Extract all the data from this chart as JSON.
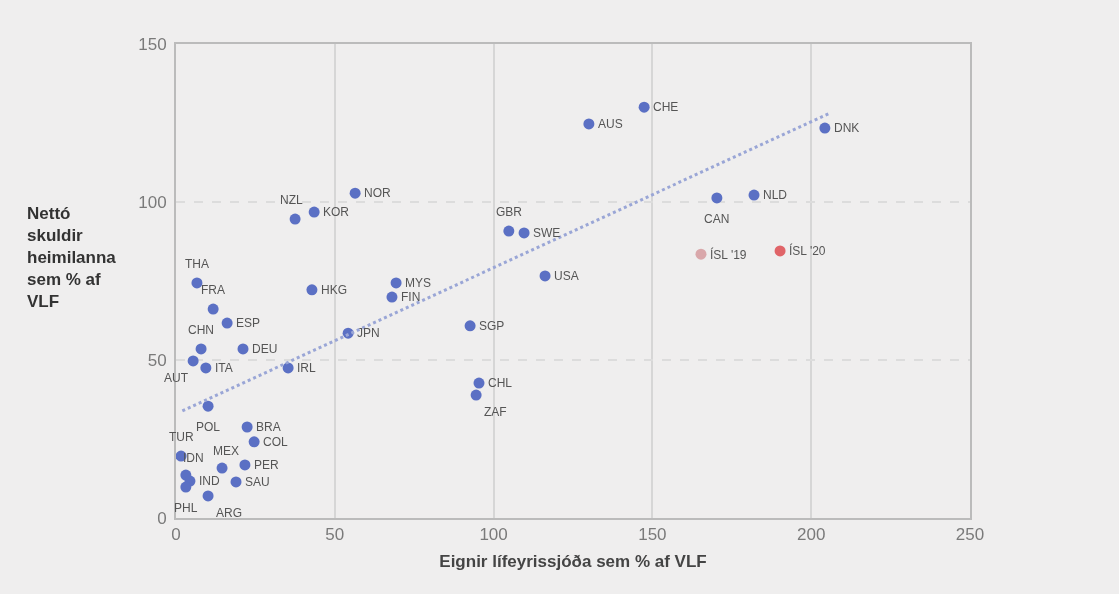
{
  "chart_data": {
    "type": "scatter",
    "xlabel": "Eignir lífeyrissjóða sem % af VLF",
    "ylabel": "Nettó skuldir heimilanna sem % af VLF",
    "xlim": [
      0,
      250
    ],
    "ylim": [
      0,
      150
    ],
    "xticks": [
      0,
      50,
      100,
      150,
      200,
      250
    ],
    "yticks": [
      0,
      50,
      100,
      150
    ],
    "grid": true,
    "legend": false,
    "series": [
      {
        "marker": "circle",
        "x": [
          130,
          147.4,
          204.3,
          182,
          170.3,
          165.3,
          190.2,
          104.8,
          109.6,
          116.2,
          92.6,
          95.4,
          94.5,
          56.4,
          43.5,
          37.5,
          69.3,
          68,
          42.8,
          54.2,
          35.3,
          6.6,
          11.7,
          16.1,
          7.9,
          21.1,
          5.4,
          9.4,
          10.1,
          22.4,
          24.6,
          1.6,
          14.5,
          21.7,
          3.1,
          4.4,
          3.1,
          18.9,
          10.1
        ],
        "values": [
          124.7,
          130,
          123.4,
          102.2,
          101.3,
          83.5,
          84.5,
          90.8,
          90.2,
          76.6,
          60.8,
          42.7,
          38.9,
          102.8,
          96.8,
          94.6,
          74.4,
          69.9,
          72.2,
          58.5,
          47.5,
          74.4,
          66.1,
          61.7,
          53.5,
          53.5,
          49.7,
          47.5,
          35.4,
          28.8,
          24.1,
          19.6,
          15.8,
          16.8,
          13.6,
          11.7,
          9.8,
          11.4,
          7.0
        ],
        "colors": [
          "#5b70c4",
          "#5b70c4",
          "#5b70c4",
          "#5b70c4",
          "#5b70c4",
          "#d9a7aa",
          "#e06468",
          "#5b70c4",
          "#5b70c4",
          "#5b70c4",
          "#5b70c4",
          "#5b70c4",
          "#5b70c4",
          "#5b70c4",
          "#5b70c4",
          "#5b70c4",
          "#5b70c4",
          "#5b70c4",
          "#5b70c4",
          "#5b70c4",
          "#5b70c4",
          "#5b70c4",
          "#5b70c4",
          "#5b70c4",
          "#5b70c4",
          "#5b70c4",
          "#5b70c4",
          "#5b70c4",
          "#5b70c4",
          "#5b70c4",
          "#5b70c4",
          "#5b70c4",
          "#5b70c4",
          "#5b70c4",
          "#5b70c4",
          "#5b70c4",
          "#5b70c4",
          "#5b70c4",
          "#5b70c4"
        ]
      },
      {
        "type": "line",
        "x": [
          2,
          206
        ],
        "values": [
          33.9,
          128.2
        ],
        "color": "#9aa6d6",
        "line_style": "dotted"
      }
    ],
    "annotations": [
      {
        "text": "AUS",
        "x": 130,
        "y": 124.7
      },
      {
        "text": "CHE",
        "x": 147.4,
        "y": 130
      },
      {
        "text": "DNK",
        "x": 204.3,
        "y": 123.4
      },
      {
        "text": "NLD",
        "x": 182,
        "y": 102.2
      },
      {
        "text": "CAN",
        "x": 170.3,
        "y": 101.3
      },
      {
        "text": "ÍSL '19",
        "x": 165.3,
        "y": 83.5
      },
      {
        "text": "ÍSL '20",
        "x": 190.2,
        "y": 84.5
      },
      {
        "text": "GBR",
        "x": 104.8,
        "y": 90.8
      },
      {
        "text": "SWE",
        "x": 109.6,
        "y": 90.2
      },
      {
        "text": "USA",
        "x": 116.2,
        "y": 76.6
      },
      {
        "text": "SGP",
        "x": 92.6,
        "y": 60.8
      },
      {
        "text": "CHL",
        "x": 95.4,
        "y": 42.7
      },
      {
        "text": "ZAF",
        "x": 94.5,
        "y": 38.9
      },
      {
        "text": "NOR",
        "x": 56.4,
        "y": 102.8
      },
      {
        "text": "KOR",
        "x": 43.5,
        "y": 96.8
      },
      {
        "text": "NZL",
        "x": 37.5,
        "y": 94.6
      },
      {
        "text": "MYS",
        "x": 69.3,
        "y": 74.4
      },
      {
        "text": "FIN",
        "x": 68,
        "y": 69.9
      },
      {
        "text": "HKG",
        "x": 42.8,
        "y": 72.2
      },
      {
        "text": "JPN",
        "x": 54.2,
        "y": 58.5
      },
      {
        "text": "IRL",
        "x": 35.3,
        "y": 47.5
      },
      {
        "text": "THA",
        "x": 6.6,
        "y": 74.4
      },
      {
        "text": "FRA",
        "x": 11.7,
        "y": 66.1
      },
      {
        "text": "ESP",
        "x": 16.1,
        "y": 61.7
      },
      {
        "text": "CHN",
        "x": 7.9,
        "y": 53.5
      },
      {
        "text": "DEU",
        "x": 21.1,
        "y": 53.5
      },
      {
        "text": "AUT",
        "x": 5.4,
        "y": 49.7
      },
      {
        "text": "ITA",
        "x": 9.4,
        "y": 47.5
      },
      {
        "text": "POL",
        "x": 10.1,
        "y": 35.4
      },
      {
        "text": "BRA",
        "x": 22.4,
        "y": 28.8
      },
      {
        "text": "COL",
        "x": 24.6,
        "y": 24.1
      },
      {
        "text": "TUR",
        "x": 1.6,
        "y": 19.6
      },
      {
        "text": "MEX",
        "x": 14.5,
        "y": 15.8
      },
      {
        "text": "PER",
        "x": 21.7,
        "y": 16.8
      },
      {
        "text": "IDN",
        "x": 3.1,
        "y": 13.6
      },
      {
        "text": "IND",
        "x": 4.4,
        "y": 11.7
      },
      {
        "text": "PHL",
        "x": 3.1,
        "y": 9.8
      },
      {
        "text": "SAU",
        "x": 18.9,
        "y": 11.4
      },
      {
        "text": "ARG",
        "x": 10.1,
        "y": 7.0
      }
    ]
  }
}
